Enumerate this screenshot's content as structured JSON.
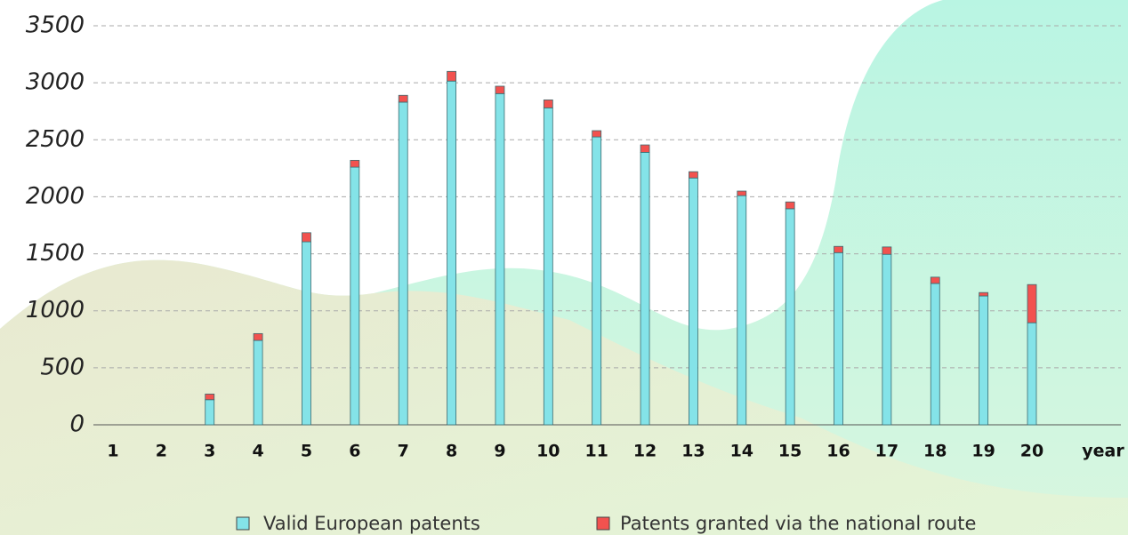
{
  "chart_data": {
    "type": "stacked-bar",
    "categories": [
      "1",
      "2",
      "3",
      "4",
      "5",
      "6",
      "7",
      "8",
      "9",
      "10",
      "11",
      "12",
      "13",
      "14",
      "15",
      "16",
      "17",
      "18",
      "19",
      "20"
    ],
    "x_label": "year",
    "series": [
      {
        "name": "Valid European patents",
        "color": "#84e3e8",
        "values": [
          0,
          0,
          220,
          740,
          1605,
          2260,
          2830,
          3015,
          2905,
          2780,
          2525,
          2390,
          2165,
          2010,
          1895,
          1510,
          1495,
          1240,
          1130,
          895
        ]
      },
      {
        "name": "Patents granted via the national route",
        "color": "#f2524f",
        "values": [
          0,
          0,
          50,
          60,
          80,
          60,
          60,
          85,
          65,
          70,
          55,
          65,
          55,
          40,
          60,
          55,
          65,
          55,
          30,
          335
        ]
      }
    ],
    "ylim": [
      0,
      3500
    ],
    "yticks": [
      0,
      500,
      1000,
      1500,
      2000,
      2500,
      3000,
      3500
    ],
    "grid": true
  }
}
